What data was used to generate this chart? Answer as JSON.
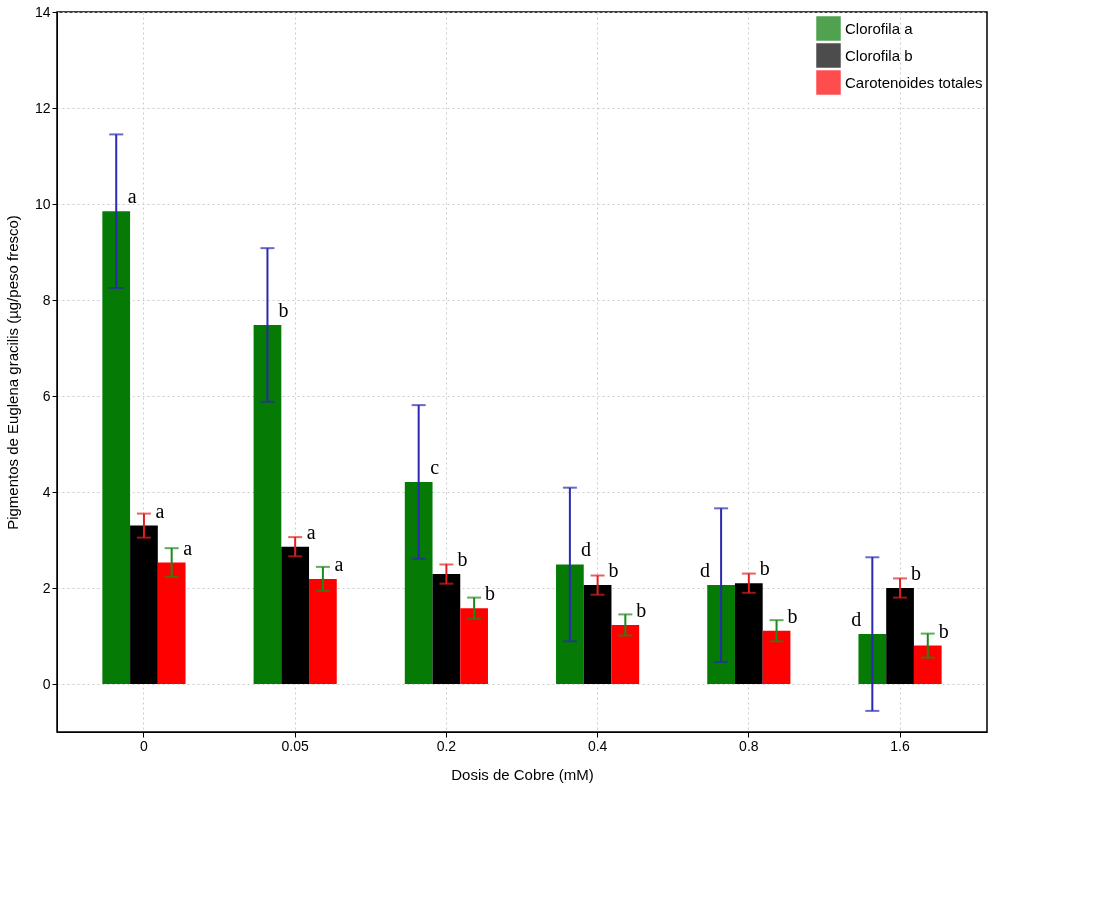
{
  "chart_data": {
    "type": "bar",
    "xlabel": "Dosis de Cobre (mM)",
    "ylabel": "Pigmentos de Euglena gracilis (µg/peso fresco)",
    "categories": [
      "0",
      "0.05",
      "0.2",
      "0.4",
      "0.8",
      "1.6"
    ],
    "series": [
      {
        "name": "Clorofila a",
        "color": "#057a05",
        "values": [
          9.85,
          7.48,
          4.21,
          2.49,
          2.06,
          1.04
        ],
        "errors": [
          1.6,
          1.6,
          1.6,
          1.6,
          1.6,
          1.6
        ],
        "value_labels": [
          "a",
          "b",
          "c",
          "d",
          "d",
          "d"
        ]
      },
      {
        "name": "Clorofila b",
        "color": "#000000",
        "values": [
          3.3,
          2.86,
          2.29,
          2.06,
          2.1,
          2.0
        ],
        "errors": [
          0.25,
          0.2,
          0.2,
          0.2,
          0.2,
          0.2
        ],
        "value_labels": [
          "a",
          "a",
          "b",
          "b",
          "b",
          "b"
        ]
      },
      {
        "name": "Carotenoides totales",
        "color": "#ff0000",
        "values": [
          2.53,
          2.19,
          1.58,
          1.23,
          1.11,
          0.8
        ],
        "errors": [
          0.3,
          0.25,
          0.22,
          0.22,
          0.22,
          0.25
        ],
        "value_labels": [
          "a",
          "a",
          "b",
          "b",
          "b",
          "b"
        ]
      }
    ],
    "ylim": [
      -1,
      14
    ],
    "yticks": [
      0,
      2,
      4,
      6,
      8,
      10,
      12,
      14
    ],
    "grid": true,
    "legend": "top right"
  }
}
